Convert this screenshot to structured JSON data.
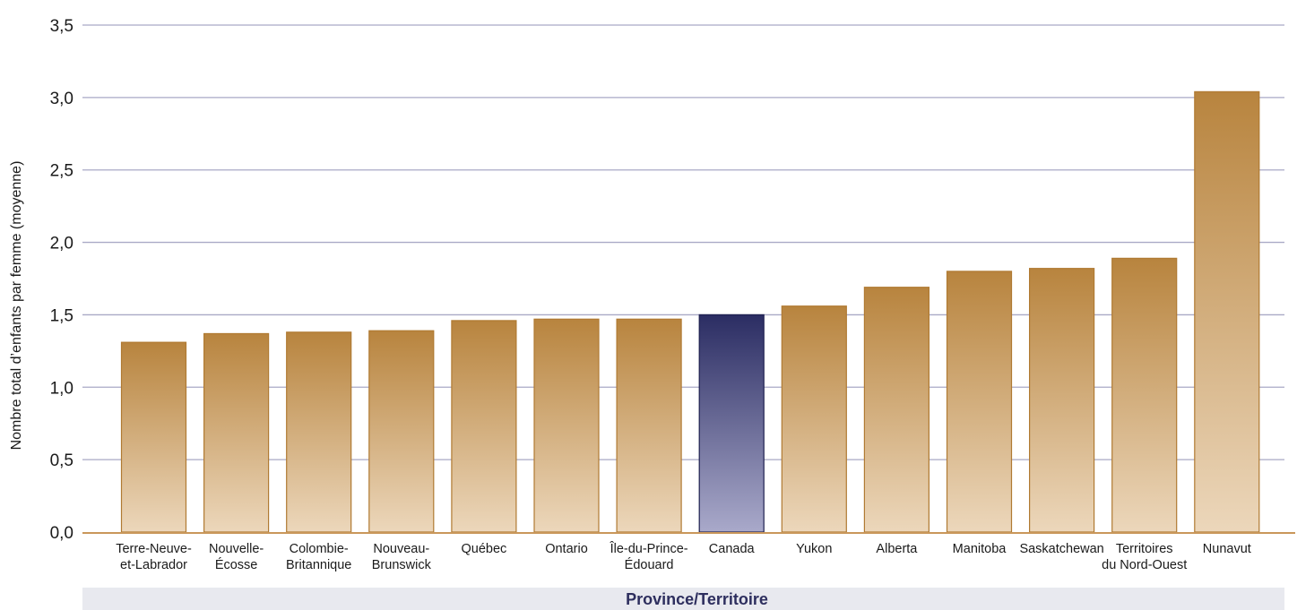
{
  "chart_data": {
    "type": "bar",
    "title": "",
    "xlabel": "Province/Territoire",
    "ylabel": "Nombre total d’enfants par femme (moyenne)",
    "ylim": [
      0,
      3.5
    ],
    "yticks": [
      "0,0",
      "0,5",
      "1,0",
      "1,5",
      "2,0",
      "2,5",
      "3,0",
      "3,5"
    ],
    "grid": true,
    "categories": [
      [
        "Terre-Neuve-",
        "et-Labrador"
      ],
      [
        "Nouvelle-",
        "Écosse"
      ],
      [
        "Colombie-",
        "Britannique"
      ],
      [
        "Nouveau-",
        "Brunswick"
      ],
      [
        "Québec"
      ],
      [
        "Ontario"
      ],
      [
        "Île-du-Prince-",
        "Édouard"
      ],
      [
        "Canada"
      ],
      [
        "Yukon"
      ],
      [
        "Alberta"
      ],
      [
        "Manitoba"
      ],
      [
        "Saskatchewan"
      ],
      [
        "Territoires",
        "du Nord-Ouest"
      ],
      [
        "Nunavut"
      ]
    ],
    "values": [
      1.31,
      1.37,
      1.38,
      1.39,
      1.46,
      1.47,
      1.47,
      1.5,
      1.56,
      1.69,
      1.8,
      1.82,
      1.89,
      3.04
    ],
    "highlight_index": 7,
    "colors": {
      "bar_top": "#b8843e",
      "bar_bottom": "#ecd7bb",
      "bar_stroke": "#b07a32",
      "highlight_top": "#2b2d63",
      "highlight_bottom": "#a9a9ca",
      "highlight_stroke": "#1f2150",
      "gridline": "#a9a9c6",
      "axis": "#c9975a",
      "xlabel_band": "#e8e9ef"
    }
  }
}
